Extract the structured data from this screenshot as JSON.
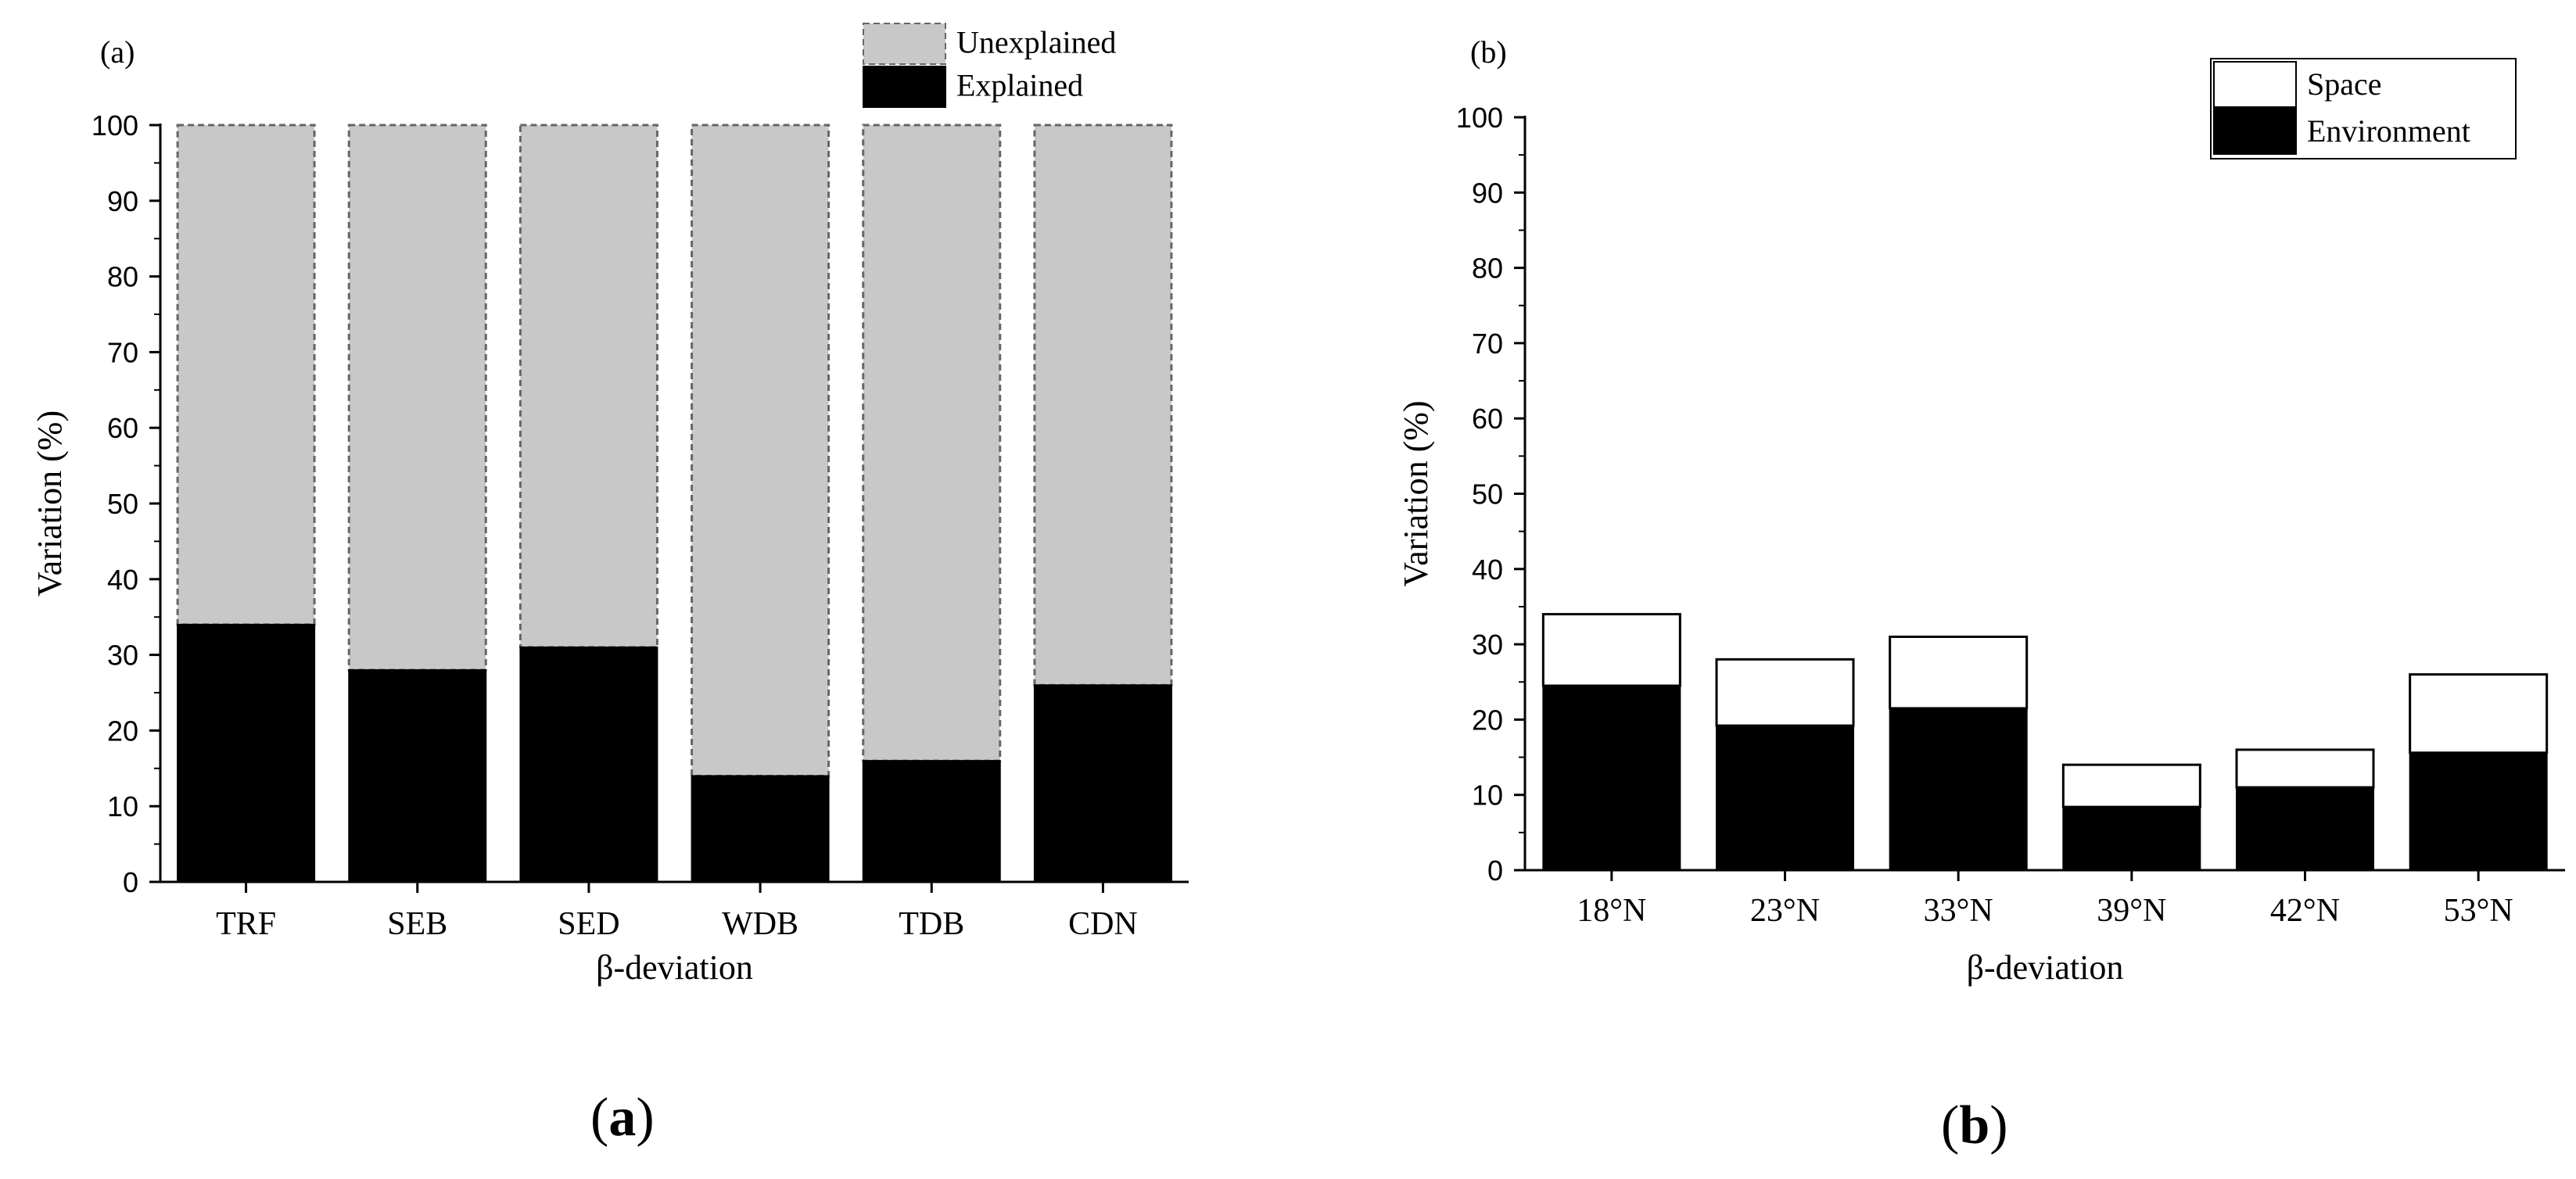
{
  "chart_data": [
    {
      "id": "a",
      "type": "bar",
      "stacked": true,
      "panel_tag": "(a)",
      "caption_letter": "a",
      "title": "",
      "xlabel": "β-deviation",
      "ylabel": "Variation (%)",
      "ylim": [
        0,
        100
      ],
      "yticks": [
        0,
        10,
        20,
        30,
        40,
        50,
        60,
        70,
        80,
        90,
        100
      ],
      "grid": false,
      "legend_position": "top-right",
      "categories": [
        "TRF",
        "SEB",
        "SED",
        "WDB",
        "TDB",
        "CDN"
      ],
      "series": [
        {
          "name": "Explained",
          "values": [
            34,
            28,
            31,
            14,
            16,
            26
          ],
          "color": "#000000"
        },
        {
          "name": "Unexplained",
          "values": [
            66,
            72,
            69,
            86,
            84,
            74
          ],
          "color": "#c8c8c8"
        }
      ],
      "legend": [
        "Unexplained",
        "Explained"
      ]
    },
    {
      "id": "b",
      "type": "bar",
      "stacked": true,
      "panel_tag": "(b)",
      "caption_letter": "b",
      "title": "",
      "xlabel": "β-deviation",
      "ylabel": "Variation (%)",
      "ylim": [
        0,
        100
      ],
      "yticks": [
        0,
        10,
        20,
        30,
        40,
        50,
        60,
        70,
        80,
        90,
        100
      ],
      "grid": false,
      "legend_position": "top-right",
      "categories": [
        "18°N",
        "23°N",
        "33°N",
        "39°N",
        "42°N",
        "53°N"
      ],
      "series": [
        {
          "name": "Environment",
          "values": [
            24.5,
            19.2,
            21.5,
            8.4,
            11.0,
            15.6
          ],
          "color": "#000000"
        },
        {
          "name": "Space",
          "values": [
            9.5,
            8.8,
            9.5,
            5.6,
            5.0,
            10.4
          ],
          "color": "#ffffff"
        }
      ],
      "legend": [
        "Space",
        "Environment"
      ]
    }
  ]
}
